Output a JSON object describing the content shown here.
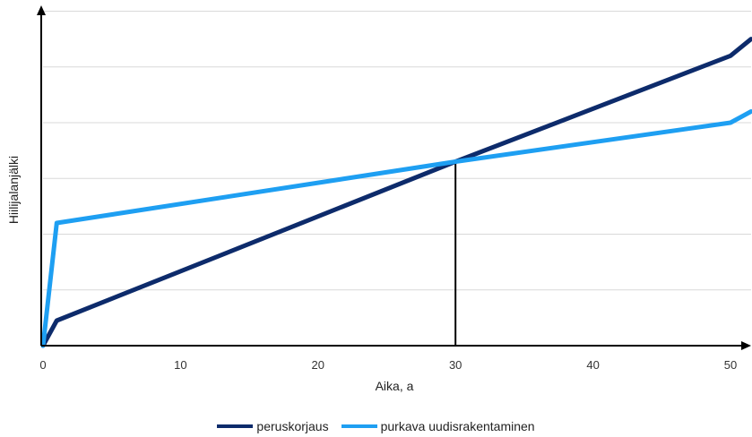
{
  "chart_data": {
    "type": "line",
    "title": "",
    "xlabel": "Aika, a",
    "ylabel": "Hiilijalanjälki",
    "xlim": [
      0,
      51.5
    ],
    "ylim": [
      0,
      6.2
    ],
    "xticks": [
      0,
      10,
      20,
      30,
      40,
      50
    ],
    "grid": "horizontal",
    "legend_position": "bottom-center",
    "series": [
      {
        "name": "peruskorjaus",
        "color": "#0d2b6b",
        "x": [
          0,
          1,
          30,
          50,
          51.5
        ],
        "y": [
          0,
          0.45,
          3.3,
          5.2,
          5.5
        ]
      },
      {
        "name": "purkava uudisrakentaminen",
        "color": "#1e9ff2",
        "x": [
          0,
          1,
          30,
          50,
          51.5
        ],
        "y": [
          0,
          2.2,
          3.3,
          4.0,
          4.2
        ]
      }
    ],
    "annotations": [
      {
        "type": "vertical-line",
        "x": 30,
        "y_from": 0,
        "y_to": 3.3,
        "color": "#000000"
      }
    ]
  }
}
